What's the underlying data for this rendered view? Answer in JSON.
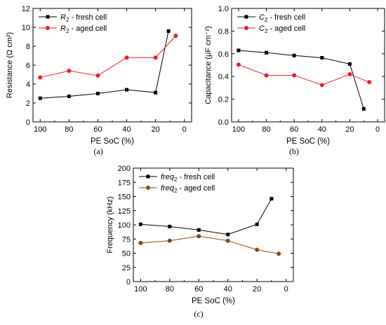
{
  "chart_data": [
    {
      "type": "line",
      "panel_label": "(a)",
      "xlabel": "PE SoC (%)",
      "ylabel": "Resistance (Ω cm²)",
      "xlim": [
        105,
        -5
      ],
      "ylim": [
        0,
        12
      ],
      "x_ticks": [
        100,
        80,
        60,
        40,
        20,
        0
      ],
      "y_ticks": [
        0,
        2,
        4,
        6,
        8,
        10,
        12
      ],
      "grid": false,
      "legend_position": "top-left",
      "series": [
        {
          "name": "R2 - fresh cell",
          "legend": {
            "var": "R",
            "sub": "2",
            "rest": " - fresh cell"
          },
          "color": "#000000",
          "marker": "square",
          "x": [
            100,
            80,
            60,
            40,
            20,
            11
          ],
          "y": [
            2.5,
            2.7,
            3.0,
            3.4,
            3.1,
            9.6
          ]
        },
        {
          "name": "R2 - aged cell",
          "legend": {
            "var": "R",
            "sub": "2",
            "rest": " - aged cell"
          },
          "color": "#ee1c24",
          "marker": "circle",
          "x": [
            100,
            80,
            60,
            40,
            20,
            6
          ],
          "y": [
            4.7,
            5.4,
            4.9,
            6.8,
            6.8,
            9.1
          ]
        }
      ]
    },
    {
      "type": "line",
      "panel_label": "(b)",
      "xlabel": "PE SoC (%)",
      "ylabel": "Capacitance (μF cm⁻²)",
      "xlim": [
        105,
        -5
      ],
      "ylim": [
        0,
        1
      ],
      "x_ticks": [
        100,
        80,
        60,
        40,
        20,
        0
      ],
      "y_ticks": [
        0.0,
        0.2,
        0.4,
        0.6,
        0.8,
        1.0
      ],
      "y_tick_labels": [
        "0.0",
        "0.2",
        "0.4",
        "0.6",
        "0.8",
        "1.0"
      ],
      "grid": false,
      "legend_position": "top-left",
      "series": [
        {
          "name": "C2 - fresh cell",
          "legend": {
            "var": "C",
            "sub": "2",
            "rest": " - fresh cell"
          },
          "color": "#000000",
          "marker": "square",
          "x": [
            100,
            80,
            60,
            40,
            20,
            10
          ],
          "y": [
            0.63,
            0.61,
            0.585,
            0.565,
            0.51,
            0.115
          ]
        },
        {
          "name": "C2 - aged cell",
          "legend": {
            "var": "C",
            "sub": "2",
            "rest": " - aged cell"
          },
          "color": "#ee1c24",
          "marker": "circle",
          "x": [
            100,
            80,
            60,
            40,
            20,
            6
          ],
          "y": [
            0.505,
            0.41,
            0.41,
            0.325,
            0.42,
            0.35
          ]
        }
      ]
    },
    {
      "type": "line",
      "panel_label": "(c)",
      "xlabel": "PE SoC (%)",
      "ylabel": "Frequency (kHz)",
      "xlim": [
        105,
        -5
      ],
      "ylim": [
        0,
        200
      ],
      "x_ticks": [
        100,
        80,
        60,
        40,
        20,
        0
      ],
      "y_ticks": [
        0,
        25,
        50,
        75,
        100,
        125,
        150,
        175,
        200
      ],
      "grid": false,
      "legend_position": "top-left",
      "series": [
        {
          "name": "freq2 - fresh cell",
          "legend": {
            "var": "freq",
            "sub": "2",
            "rest": " - fresh cell"
          },
          "color": "#000000",
          "marker": "square",
          "x": [
            100,
            80,
            60,
            40,
            20,
            10
          ],
          "y": [
            101,
            97,
            91,
            83,
            101,
            146
          ]
        },
        {
          "name": "freq2 - aged cell",
          "legend": {
            "var": "freq",
            "sub": "2",
            "rest": " - aged cell"
          },
          "color": "#8b4513",
          "marker": "circle",
          "x": [
            100,
            80,
            60,
            40,
            20,
            5
          ],
          "y": [
            68,
            72,
            80,
            72,
            56,
            49
          ]
        }
      ]
    }
  ]
}
